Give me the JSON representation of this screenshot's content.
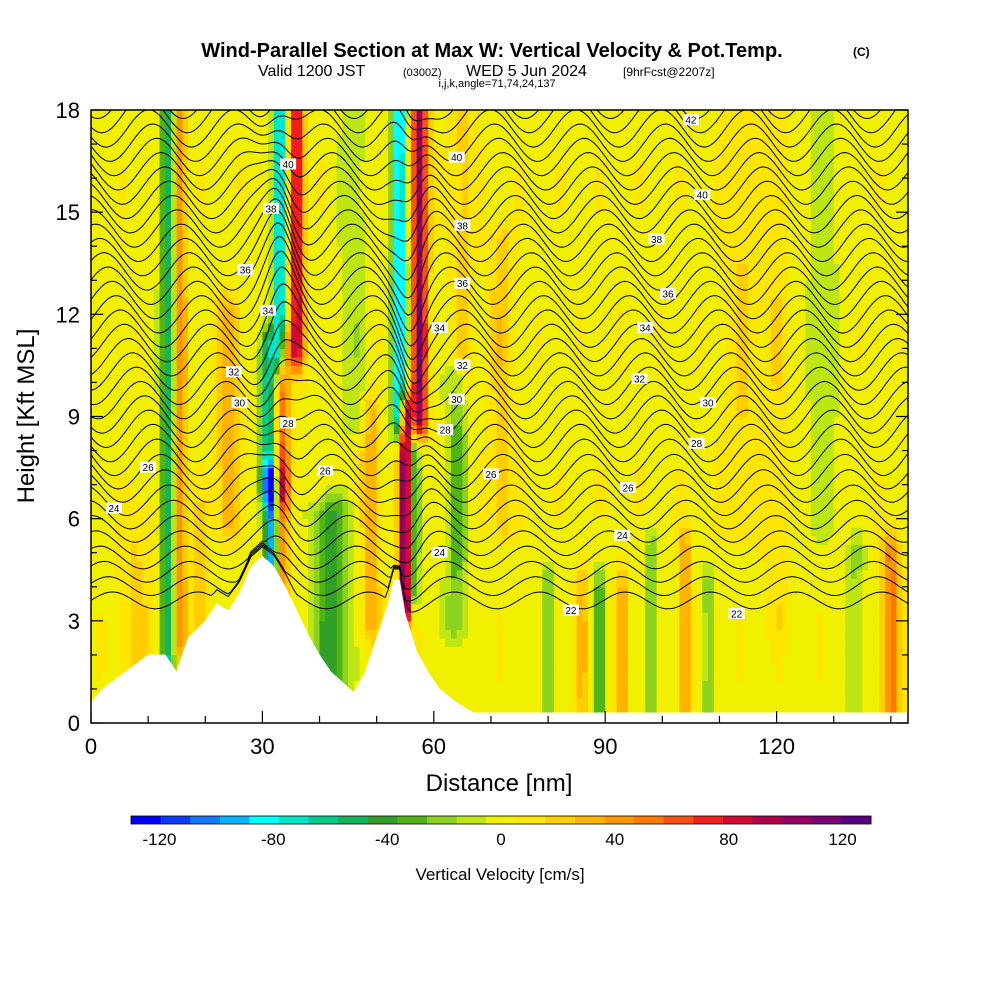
{
  "chart_data": {
    "type": "heatmap",
    "title": "Wind-Parallel Section at Max W: Vertical Velocity & Pot.Temp.",
    "title_mark": "(C)",
    "subtitle": {
      "valid": "Valid 1200 JST",
      "utc": "(0300Z)",
      "date": "WED 5 Jun 2024",
      "forecast": "[9hrFcst@2207z]"
    },
    "index_line": "i,j,k,angle=71,74,24,137",
    "xlabel": "Distance [nm]",
    "ylabel": "Height [Kft MSL]",
    "xlim": [
      0,
      143
    ],
    "ylim": [
      0,
      18
    ],
    "x_ticks": [
      0,
      30,
      60,
      90,
      120
    ],
    "y_ticks": [
      0,
      3,
      6,
      9,
      12,
      15,
      18
    ],
    "colorbar": {
      "label": "Vertical Velocity [cm/s]",
      "range": [
        -130,
        130
      ],
      "tick_values": [
        -120,
        -80,
        -40,
        0,
        40,
        80,
        120
      ],
      "colors": [
        "#0000ff",
        "#0a3cff",
        "#1478ff",
        "#00b4ff",
        "#00ffff",
        "#00e6c8",
        "#00cc8c",
        "#14b45a",
        "#32a028",
        "#50b414",
        "#8cd21e",
        "#bee614",
        "#f0f000",
        "#ffe600",
        "#ffcd00",
        "#ffb400",
        "#ff9600",
        "#ff7800",
        "#ff5014",
        "#f01e1e",
        "#d20a32",
        "#b4004b",
        "#960064",
        "#780078",
        "#5a0082"
      ]
    },
    "background_value_cm_s": 2,
    "w_features": [
      {
        "x": 13.5,
        "z0": 1.5,
        "z1": 18,
        "amp": -60,
        "width": 1.3
      },
      {
        "x": 15.5,
        "z0": 2.5,
        "z1": 18,
        "amp": 45,
        "width": 1.2
      },
      {
        "x": 33,
        "z0": 11,
        "z1": 18,
        "amp": -95,
        "width": 1.1
      },
      {
        "x": 36,
        "z0": 11,
        "z1": 18,
        "amp": 85,
        "width": 1.3
      },
      {
        "x": 31,
        "z0": 7,
        "z1": 11,
        "amp": -70,
        "width": 1.4
      },
      {
        "x": 33.5,
        "z0": 7,
        "z1": 11,
        "amp": 55,
        "width": 1.3
      },
      {
        "x": 31.5,
        "z0": 3.5,
        "z1": 7,
        "amp": -95,
        "width": 1.1
      },
      {
        "x": 33.5,
        "z0": 4,
        "z1": 7,
        "amp": 40,
        "width": 1.2
      },
      {
        "x": 54,
        "z0": 9,
        "z1": 18,
        "amp": -100,
        "width": 1.2
      },
      {
        "x": 57.5,
        "z0": 9,
        "z1": 18,
        "amp": 105,
        "width": 1.4
      },
      {
        "x": 55,
        "z0": 3.5,
        "z1": 9,
        "amp": 130,
        "width": 1.0
      },
      {
        "x": 56.5,
        "z0": 4,
        "z1": 8,
        "amp": -45,
        "width": 1.0
      },
      {
        "x": 42,
        "z0": 0.8,
        "z1": 6,
        "amp": -45,
        "width": 3.0
      },
      {
        "x": 49,
        "z0": 3,
        "z1": 9,
        "amp": 30,
        "width": 1.6
      },
      {
        "x": 24,
        "z0": 6,
        "z1": 12,
        "amp": 30,
        "width": 2.0
      },
      {
        "x": 19,
        "z0": 2,
        "z1": 6,
        "amp": 22,
        "width": 1.5
      },
      {
        "x": 64,
        "z0": 3,
        "z1": 10,
        "amp": -30,
        "width": 2.0
      },
      {
        "x": 72,
        "z0": 6,
        "z1": 14,
        "amp": 22,
        "width": 2.0
      },
      {
        "x": 80,
        "z0": 0.3,
        "z1": 4,
        "amp": -32,
        "width": 1.0
      },
      {
        "x": 86,
        "z0": 0.3,
        "z1": 4,
        "amp": 28,
        "width": 1.0
      },
      {
        "x": 89,
        "z0": 0.3,
        "z1": 4,
        "amp": -35,
        "width": 1.0
      },
      {
        "x": 93,
        "z0": 0.3,
        "z1": 4,
        "amp": 30,
        "width": 1.0
      },
      {
        "x": 98,
        "z0": 0.3,
        "z1": 5,
        "amp": -28,
        "width": 1.0
      },
      {
        "x": 104,
        "z0": 0.3,
        "z1": 5,
        "amp": 40,
        "width": 0.9
      },
      {
        "x": 108,
        "z0": 0.3,
        "z1": 4,
        "amp": -25,
        "width": 1.0
      },
      {
        "x": 140,
        "z0": 0.3,
        "z1": 5,
        "amp": 50,
        "width": 1.5
      },
      {
        "x": 134,
        "z0": 0.3,
        "z1": 5,
        "amp": -20,
        "width": 1.5
      },
      {
        "x": 114,
        "z0": 6,
        "z1": 18,
        "amp": 14,
        "width": 3.0
      },
      {
        "x": 128,
        "z0": 6,
        "z1": 18,
        "amp": -14,
        "width": 3.0
      },
      {
        "x": 120,
        "z0": 3,
        "z1": 18,
        "amp": 12,
        "width": 2.0
      },
      {
        "x": 8,
        "z0": 0.5,
        "z1": 6,
        "amp": 15,
        "width": 3.0
      },
      {
        "x": 65,
        "z0": 10,
        "z1": 18,
        "amp": 18,
        "width": 2.0
      },
      {
        "x": 46,
        "z0": 9,
        "z1": 18,
        "amp": -15,
        "width": 2.5
      }
    ],
    "terrain_profile": [
      [
        0,
        0.6
      ],
      [
        2,
        1.0
      ],
      [
        6,
        1.5
      ],
      [
        10,
        2.0
      ],
      [
        13,
        2.0
      ],
      [
        15,
        1.5
      ],
      [
        17,
        2.5
      ],
      [
        20,
        3.0
      ],
      [
        22,
        3.5
      ],
      [
        24,
        3.3
      ],
      [
        26,
        3.8
      ],
      [
        28,
        4.6
      ],
      [
        30,
        4.9
      ],
      [
        32,
        4.6
      ],
      [
        34,
        4.0
      ],
      [
        36,
        3.3
      ],
      [
        38,
        2.6
      ],
      [
        40,
        2.0
      ],
      [
        42,
        1.5
      ],
      [
        44,
        1.2
      ],
      [
        46,
        0.9
      ],
      [
        48,
        1.5
      ],
      [
        50,
        2.5
      ],
      [
        52,
        3.5
      ],
      [
        53,
        4.2
      ],
      [
        54,
        4.2
      ],
      [
        55,
        3.2
      ],
      [
        57,
        2.1
      ],
      [
        59,
        1.5
      ],
      [
        61,
        1.0
      ],
      [
        64,
        0.6
      ],
      [
        67,
        0.3
      ],
      [
        70,
        0.3
      ],
      [
        143,
        0.3
      ]
    ],
    "isentrope_labels": [
      {
        "value": "42",
        "x": 105,
        "z": 17.7
      },
      {
        "value": "40",
        "x": 34.5,
        "z": 16.4
      },
      {
        "value": "40",
        "x": 64,
        "z": 16.6
      },
      {
        "value": "40",
        "x": 107,
        "z": 15.5
      },
      {
        "value": "38",
        "x": 31.5,
        "z": 15.1
      },
      {
        "value": "38",
        "x": 65,
        "z": 14.6
      },
      {
        "value": "38",
        "x": 99,
        "z": 14.2
      },
      {
        "value": "36",
        "x": 27,
        "z": 13.3
      },
      {
        "value": "36",
        "x": 65,
        "z": 12.9
      },
      {
        "value": "36",
        "x": 101,
        "z": 12.6
      },
      {
        "value": "34",
        "x": 31,
        "z": 12.1
      },
      {
        "value": "34",
        "x": 61,
        "z": 11.6
      },
      {
        "value": "34",
        "x": 97,
        "z": 11.6
      },
      {
        "value": "32",
        "x": 25,
        "z": 10.3
      },
      {
        "value": "32",
        "x": 65,
        "z": 10.5
      },
      {
        "value": "32",
        "x": 96,
        "z": 10.1
      },
      {
        "value": "30",
        "x": 26,
        "z": 9.4
      },
      {
        "value": "30",
        "x": 64,
        "z": 9.5
      },
      {
        "value": "30",
        "x": 108,
        "z": 9.4
      },
      {
        "value": "28",
        "x": 34.5,
        "z": 8.8
      },
      {
        "value": "28",
        "x": 62,
        "z": 8.6
      },
      {
        "value": "28",
        "x": 106,
        "z": 8.2
      },
      {
        "value": "26",
        "x": 10,
        "z": 7.5
      },
      {
        "value": "26",
        "x": 41,
        "z": 7.4
      },
      {
        "value": "26",
        "x": 70,
        "z": 7.3
      },
      {
        "value": "26",
        "x": 94,
        "z": 6.9
      },
      {
        "value": "24",
        "x": 4,
        "z": 6.3
      },
      {
        "value": "24",
        "x": 61,
        "z": 5.0
      },
      {
        "value": "24",
        "x": 93,
        "z": 5.5
      },
      {
        "value": "22",
        "x": 84,
        "z": 3.3
      },
      {
        "value": "22",
        "x": 113,
        "z": 3.2
      }
    ]
  }
}
